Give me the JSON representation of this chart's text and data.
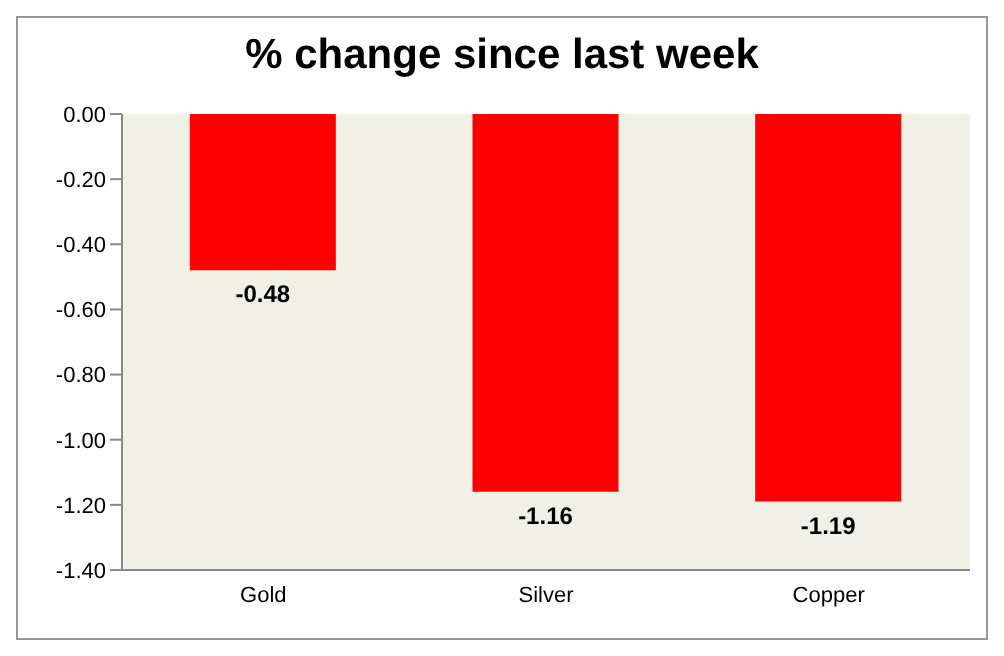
{
  "chart_data": {
    "type": "bar",
    "title": "% change since last week",
    "categories": [
      "Gold",
      "Silver",
      "Copper"
    ],
    "values": [
      -0.48,
      -1.16,
      -1.19
    ],
    "color": "#ff0000",
    "ylim": [
      -1.4,
      0
    ],
    "yticks": [
      {
        "value": 0,
        "label": "0.00"
      },
      {
        "value": -0.2,
        "label": "-0.20"
      },
      {
        "value": -0.4,
        "label": "-0.40"
      },
      {
        "value": -0.6,
        "label": "-0.60"
      },
      {
        "value": -0.8,
        "label": "-0.80"
      },
      {
        "value": -1,
        "label": "-1.00"
      },
      {
        "value": -1.2,
        "label": "-1.20"
      },
      {
        "value": -1.4,
        "label": "-1.40"
      }
    ],
    "data_labels": true
  }
}
